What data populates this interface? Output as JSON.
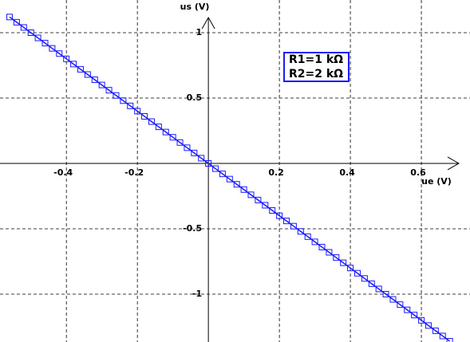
{
  "chart_data": {
    "type": "scatter-line",
    "x_label": "ue (V)",
    "y_label": "us (V)",
    "annotations": [
      "R1=1 kΩ",
      "R2=2 kΩ"
    ],
    "color": "#1a1aff",
    "xlim": [
      -0.587,
      0.737
    ],
    "ylim": [
      -1.366,
      1.25
    ],
    "xticks": [
      -0.4,
      -0.2,
      0.2,
      0.4,
      0.6
    ],
    "yticks": [
      -1,
      -0.5,
      0.5,
      1
    ],
    "grid": true,
    "x": [
      -0.56,
      -0.54,
      -0.52,
      -0.5,
      -0.48,
      -0.46,
      -0.44,
      -0.42,
      -0.4,
      -0.38,
      -0.36,
      -0.34,
      -0.32,
      -0.3,
      -0.28,
      -0.26,
      -0.24,
      -0.22,
      -0.2,
      -0.18,
      -0.16,
      -0.14,
      -0.12,
      -0.1,
      -0.08,
      -0.06,
      -0.04,
      -0.02,
      0,
      0.02,
      0.04,
      0.06,
      0.08,
      0.1,
      0.12,
      0.14,
      0.16,
      0.18,
      0.2,
      0.22,
      0.24,
      0.26,
      0.28,
      0.3,
      0.32,
      0.34,
      0.36,
      0.38,
      0.4,
      0.42,
      0.44,
      0.46,
      0.48,
      0.5,
      0.52,
      0.54,
      0.56,
      0.58,
      0.6,
      0.62,
      0.64,
      0.66,
      0.68
    ],
    "values": [
      1.12,
      1.08,
      1.04,
      1,
      0.96,
      0.92,
      0.88,
      0.84,
      0.8,
      0.76,
      0.72,
      0.68,
      0.64,
      0.6,
      0.56,
      0.52,
      0.48,
      0.44,
      0.4,
      0.36,
      0.32,
      0.28,
      0.24,
      0.2,
      0.16,
      0.12,
      0.08,
      0.04,
      0,
      -0.04,
      -0.08,
      -0.12,
      -0.16,
      -0.2,
      -0.24,
      -0.28,
      -0.32,
      -0.36,
      -0.4,
      -0.44,
      -0.48,
      -0.52,
      -0.56,
      -0.6,
      -0.64,
      -0.68,
      -0.72,
      -0.76,
      -0.8,
      -0.84,
      -0.88,
      -0.92,
      -0.96,
      -1,
      -1.04,
      -1.08,
      -1.12,
      -1.16,
      -1.2,
      -1.24,
      -1.28,
      -1.32,
      -1.36
    ]
  }
}
